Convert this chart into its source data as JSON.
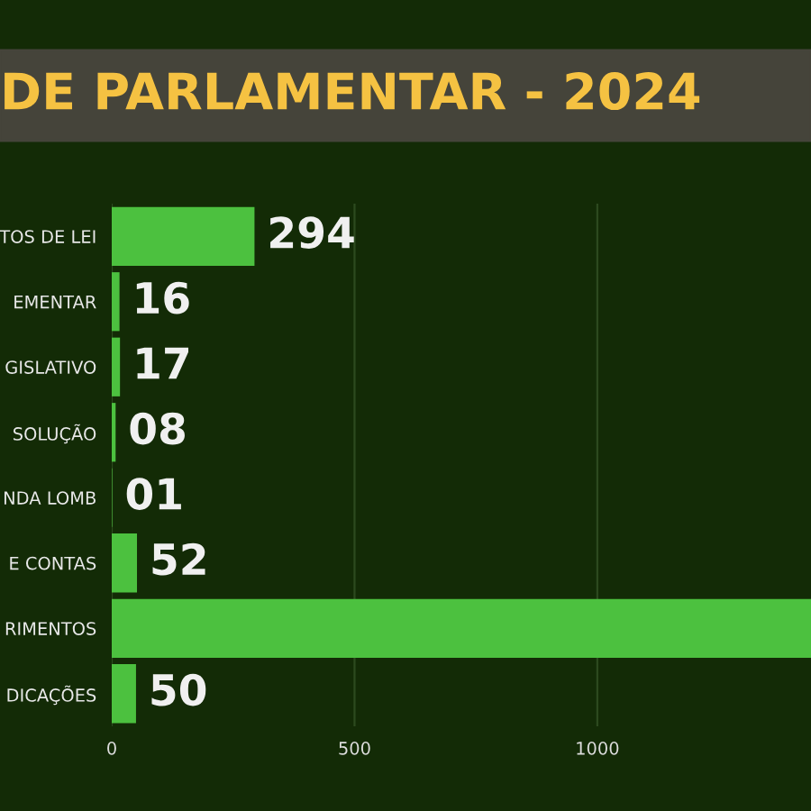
{
  "chart_data": {
    "type": "bar",
    "orientation": "horizontal",
    "title": "DE PARLAMENTAR - 2024",
    "categories": [
      "TOS DE LEI",
      "EMENTAR",
      "GISLATIVO",
      "SOLUÇÃO",
      "NDA LOMB",
      "E CONTAS",
      "RIMENTOS",
      "DICAÇÕES"
    ],
    "values": [
      294,
      16,
      17,
      8,
      1,
      52,
      1440,
      50
    ],
    "value_labels": [
      "294",
      "16",
      "17",
      "08",
      "01",
      "52",
      null,
      "50"
    ],
    "color": "#4cc13f",
    "xlim": [
      0,
      1440
    ],
    "xticks": [
      0,
      500,
      1000
    ],
    "grid": "x"
  }
}
